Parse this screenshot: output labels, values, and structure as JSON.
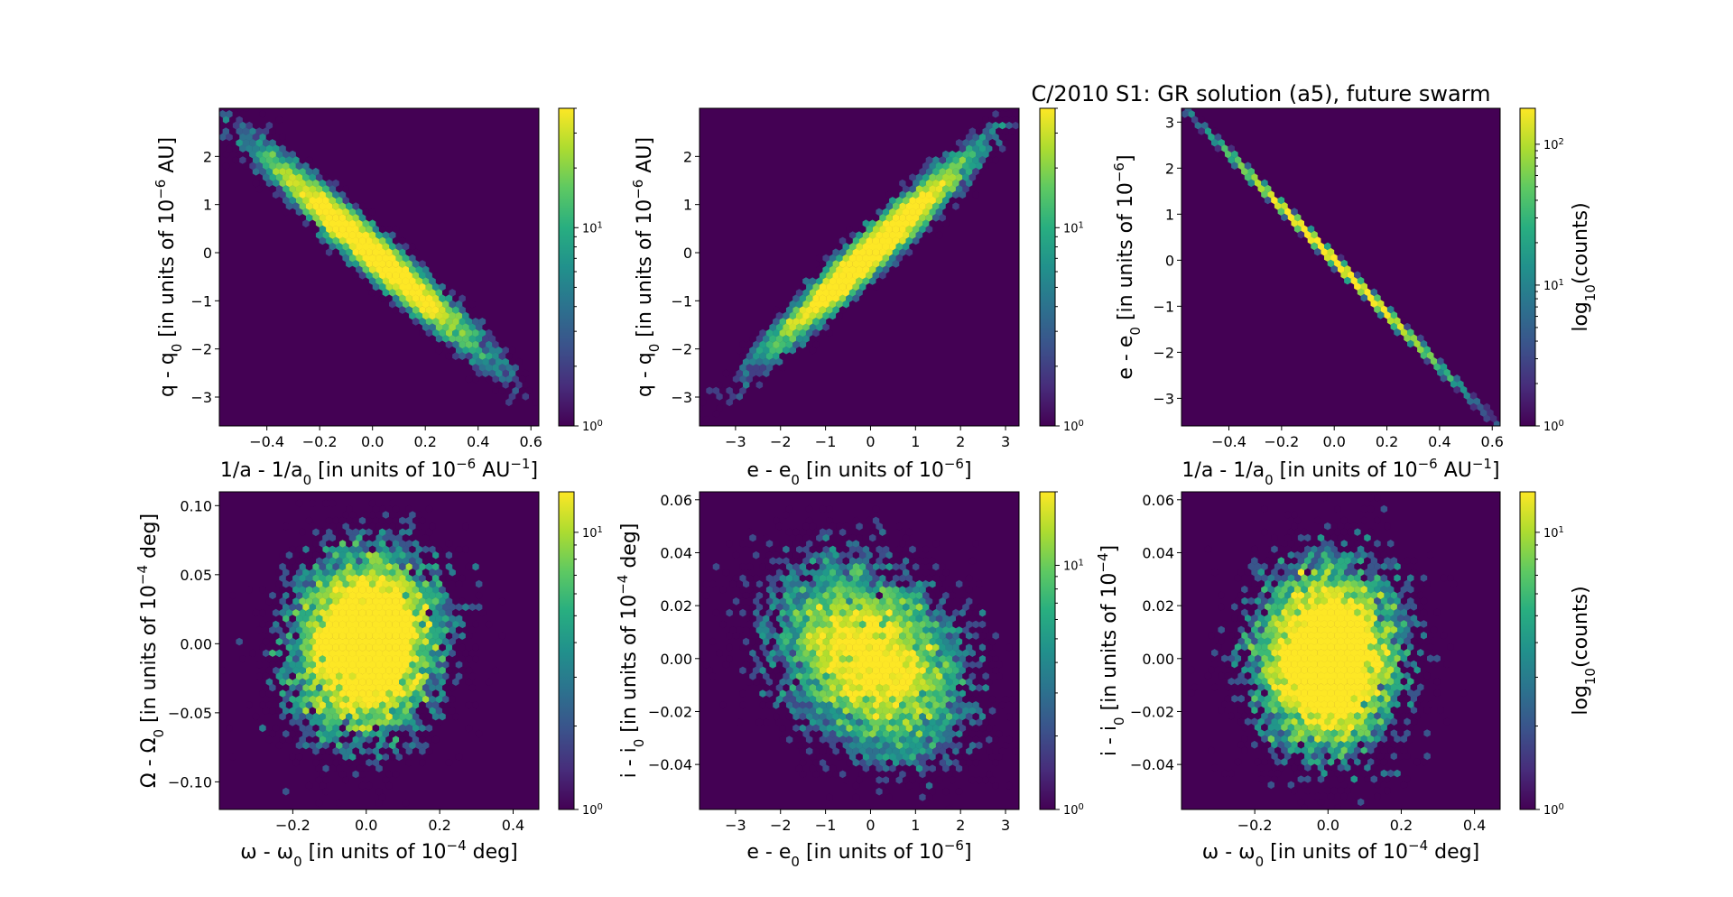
{
  "figure_title": "C/2010 S1: GR solution (a5), future swarm",
  "colorbar_label": "log10(counts)",
  "chart_data": [
    {
      "type": "heatmap",
      "subtype": "hexbin",
      "x_var": "1/a - 1/a0",
      "x_unit": "in units of 10^-6 AU^-1",
      "y_var": "q - q0",
      "y_unit": "in units of 10^-6 AU",
      "xlim": [
        -0.58,
        0.63
      ],
      "ylim": [
        -3.6,
        3.0
      ],
      "xticks": [
        "-0.4",
        "-0.2",
        "0.0",
        "0.2",
        "0.4",
        "0.6"
      ],
      "yticks": [
        "-3",
        "-2",
        "-1",
        "0",
        "1",
        "2"
      ],
      "distribution": {
        "center": [
          0.0,
          0.0
        ],
        "x_sd": 0.2,
        "y_sd": 1.0,
        "correlation": -0.97
      },
      "colorbar": {
        "scale": "log",
        "range": [
          1,
          40
        ],
        "ticks": [
          "10^0",
          "10^1"
        ]
      }
    },
    {
      "type": "heatmap",
      "subtype": "hexbin",
      "x_var": "e - e0",
      "x_unit": "in units of 10^-6",
      "y_var": "q - q0",
      "y_unit": "in units of 10^-6 AU",
      "xlim": [
        -3.8,
        3.3
      ],
      "ylim": [
        -3.6,
        3.0
      ],
      "xticks": [
        "-3",
        "-2",
        "-1",
        "0",
        "1",
        "2",
        "3"
      ],
      "yticks": [
        "-3",
        "-2",
        "-1",
        "0",
        "1",
        "2"
      ],
      "distribution": {
        "center": [
          0.0,
          0.0
        ],
        "x_sd": 1.1,
        "y_sd": 1.0,
        "correlation": 0.97
      },
      "colorbar": {
        "scale": "log",
        "range": [
          1,
          40
        ],
        "ticks": [
          "10^0",
          "10^1"
        ]
      }
    },
    {
      "type": "heatmap",
      "subtype": "hexbin",
      "x_var": "1/a - 1/a0",
      "x_unit": "in units of 10^-6 AU^-1",
      "y_var": "e - e0",
      "y_unit": "in units of 10^-6",
      "xlim": [
        -0.58,
        0.63
      ],
      "ylim": [
        -3.6,
        3.3
      ],
      "xticks": [
        "-0.4",
        "-0.2",
        "0.0",
        "0.2",
        "0.4",
        "0.6"
      ],
      "yticks": [
        "-3",
        "-2",
        "-1",
        "0",
        "1",
        "2",
        "3"
      ],
      "distribution": {
        "center": [
          0.0,
          0.0
        ],
        "x_sd": 0.2,
        "y_sd": 1.16,
        "correlation": -0.9995
      },
      "colorbar": {
        "scale": "log",
        "range": [
          1,
          180
        ],
        "ticks": [
          "10^0",
          "10^1",
          "10^2"
        ],
        "label": "log10(counts)"
      }
    },
    {
      "type": "heatmap",
      "subtype": "hexbin",
      "x_var": "ω - ω0",
      "x_unit": "in units of 10^-4 deg",
      "y_var": "Ω - Ω0",
      "y_unit": "in units of 10^-4 deg",
      "xlim": [
        -0.4,
        0.47
      ],
      "ylim": [
        -0.12,
        0.11
      ],
      "xticks": [
        "-0.2",
        "0.0",
        "0.2",
        "0.4"
      ],
      "yticks": [
        "-0.10",
        "-0.05",
        "0.00",
        "0.05",
        "0.10"
      ],
      "distribution": {
        "center": [
          0.0,
          0.0
        ],
        "x_sd": 0.1,
        "y_sd": 0.034,
        "correlation": 0.1
      },
      "colorbar": {
        "scale": "log",
        "range": [
          1,
          14
        ],
        "ticks": [
          "10^0",
          "10^1"
        ]
      }
    },
    {
      "type": "heatmap",
      "subtype": "hexbin",
      "x_var": "e - e0",
      "x_unit": "in units of 10^-6",
      "y_var": "i - i0",
      "y_unit": "in units of 10^-4 deg",
      "xlim": [
        -3.8,
        3.3
      ],
      "ylim": [
        -0.057,
        0.063
      ],
      "xticks": [
        "-3",
        "-2",
        "-1",
        "0",
        "1",
        "2",
        "3"
      ],
      "yticks": [
        "-0.04",
        "-0.02",
        "0.00",
        "0.02",
        "0.04",
        "0.06"
      ],
      "distribution": {
        "center": [
          0.0,
          0.0
        ],
        "x_sd": 1.05,
        "y_sd": 0.018,
        "correlation": -0.3
      },
      "colorbar": {
        "scale": "log",
        "range": [
          1,
          20
        ],
        "ticks": [
          "10^0",
          "10^1"
        ]
      }
    },
    {
      "type": "heatmap",
      "subtype": "hexbin",
      "x_var": "ω - ω0",
      "x_unit": "in units of 10^-4 deg",
      "y_var": "i - i0",
      "y_unit": "in units of 10^-4",
      "xlim": [
        -0.4,
        0.47
      ],
      "ylim": [
        -0.057,
        0.063
      ],
      "xticks": [
        "-0.2",
        "0.0",
        "0.2",
        "0.4"
      ],
      "yticks": [
        "-0.04",
        "-0.02",
        "0.00",
        "0.02",
        "0.04",
        "0.06"
      ],
      "distribution": {
        "center": [
          0.0,
          0.0
        ],
        "x_sd": 0.1,
        "y_sd": 0.018,
        "correlation": 0.0
      },
      "colorbar": {
        "scale": "log",
        "range": [
          1,
          14
        ],
        "ticks": [
          "10^0",
          "10^1"
        ],
        "label": "log10(counts)"
      }
    }
  ]
}
